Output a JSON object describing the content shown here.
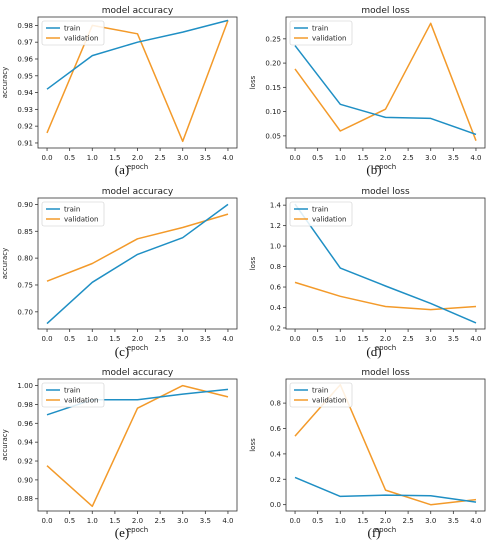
{
  "chart_data": [
    {
      "type": "line",
      "panel": "(a)",
      "title": "model accuracy",
      "xlabel": "epoch",
      "ylabel": "accuracy",
      "x": [
        0,
        1,
        2,
        3,
        4
      ],
      "xticks": [
        "0.0",
        "0.5",
        "1.0",
        "1.5",
        "2.0",
        "2.5",
        "3.0",
        "3.5",
        "4.0"
      ],
      "yticks": [
        "0.91",
        "0.92",
        "0.93",
        "0.94",
        "0.95",
        "0.96",
        "0.97",
        "0.98"
      ],
      "ylim": [
        0.907,
        0.985
      ],
      "legend": "upper left",
      "grid": false,
      "series": [
        {
          "name": "train",
          "values": [
            0.942,
            0.962,
            0.97,
            0.976,
            0.983
          ]
        },
        {
          "name": "validation",
          "values": [
            0.916,
            0.98,
            0.975,
            0.911,
            0.983
          ]
        }
      ]
    },
    {
      "type": "line",
      "panel": "(b)",
      "title": "model loss",
      "xlabel": "epoch",
      "ylabel": "loss",
      "x": [
        0,
        1,
        2,
        3,
        4
      ],
      "xticks": [
        "0.0",
        "0.5",
        "1.0",
        "1.5",
        "2.0",
        "2.5",
        "3.0",
        "3.5",
        "4.0"
      ],
      "yticks": [
        "0.05",
        "0.10",
        "0.15",
        "0.20",
        "0.25"
      ],
      "ylim": [
        0.025,
        0.295
      ],
      "legend": "upper left",
      "grid": false,
      "series": [
        {
          "name": "train",
          "values": [
            0.236,
            0.115,
            0.088,
            0.086,
            0.053
          ]
        },
        {
          "name": "validation",
          "values": [
            0.188,
            0.06,
            0.105,
            0.282,
            0.04
          ]
        }
      ]
    },
    {
      "type": "line",
      "panel": "(c)",
      "title": "model accuracy",
      "xlabel": "epoch",
      "ylabel": "accuracy",
      "x": [
        0,
        1,
        2,
        3,
        4
      ],
      "xticks": [
        "0.0",
        "0.5",
        "1.0",
        "1.5",
        "2.0",
        "2.5",
        "3.0",
        "3.5",
        "4.0"
      ],
      "yticks": [
        "0.70",
        "0.75",
        "0.80",
        "0.85",
        "0.90"
      ],
      "ylim": [
        0.668,
        0.912
      ],
      "legend": "upper left",
      "grid": false,
      "series": [
        {
          "name": "train",
          "values": [
            0.678,
            0.755,
            0.807,
            0.838,
            0.9
          ]
        },
        {
          "name": "validation",
          "values": [
            0.757,
            0.79,
            0.836,
            0.857,
            0.882
          ]
        }
      ]
    },
    {
      "type": "line",
      "panel": "(d)",
      "title": "model loss",
      "xlabel": "epoch",
      "ylabel": "loss",
      "x": [
        0,
        1,
        2,
        3,
        4
      ],
      "xticks": [
        "0.0",
        "0.5",
        "1.0",
        "1.5",
        "2.0",
        "2.5",
        "3.0",
        "3.5",
        "4.0"
      ],
      "yticks": [
        "0.2",
        "0.4",
        "0.6",
        "0.8",
        "1.0",
        "1.2",
        "1.4"
      ],
      "ylim": [
        0.19,
        1.47
      ],
      "legend": "upper left",
      "grid": false,
      "series": [
        {
          "name": "train",
          "values": [
            1.41,
            0.785,
            0.61,
            0.44,
            0.25
          ]
        },
        {
          "name": "validation",
          "values": [
            0.645,
            0.51,
            0.41,
            0.38,
            0.41
          ]
        }
      ]
    },
    {
      "type": "line",
      "panel": "(e)",
      "title": "model accuracy",
      "xlabel": "epoch",
      "ylabel": "accuracy",
      "x": [
        0,
        1,
        2,
        3,
        4
      ],
      "xticks": [
        "0.0",
        "0.5",
        "1.0",
        "1.5",
        "2.0",
        "2.5",
        "3.0",
        "3.5",
        "4.0"
      ],
      "yticks": [
        "0.88",
        "0.90",
        "0.92",
        "0.94",
        "0.96",
        "0.98",
        "1.00"
      ],
      "ylim": [
        0.867,
        1.007
      ],
      "legend": "upper left",
      "grid": false,
      "series": [
        {
          "name": "train",
          "values": [
            0.969,
            0.985,
            0.985,
            0.991,
            0.996
          ]
        },
        {
          "name": "validation",
          "values": [
            0.915,
            0.872,
            0.976,
            1.0,
            0.988
          ]
        }
      ]
    },
    {
      "type": "line",
      "panel": "(f)",
      "title": "model loss",
      "xlabel": "epoch",
      "ylabel": "loss",
      "x": [
        0,
        1,
        2,
        3,
        4
      ],
      "xticks": [
        "0.0",
        "0.5",
        "1.0",
        "1.5",
        "2.0",
        "2.5",
        "3.0",
        "3.5",
        "4.0"
      ],
      "yticks": [
        "0.0",
        "0.2",
        "0.4",
        "0.6",
        "0.8"
      ],
      "ylim": [
        -0.05,
        0.99
      ],
      "legend": "upper left",
      "grid": false,
      "series": [
        {
          "name": "train",
          "values": [
            0.215,
            0.065,
            0.075,
            0.07,
            0.02
          ]
        },
        {
          "name": "validation",
          "values": [
            0.54,
            0.945,
            0.115,
            0.0,
            0.04
          ]
        }
      ]
    }
  ],
  "colors": {
    "train": "#1f8fc4",
    "validation": "#f39a2a"
  }
}
